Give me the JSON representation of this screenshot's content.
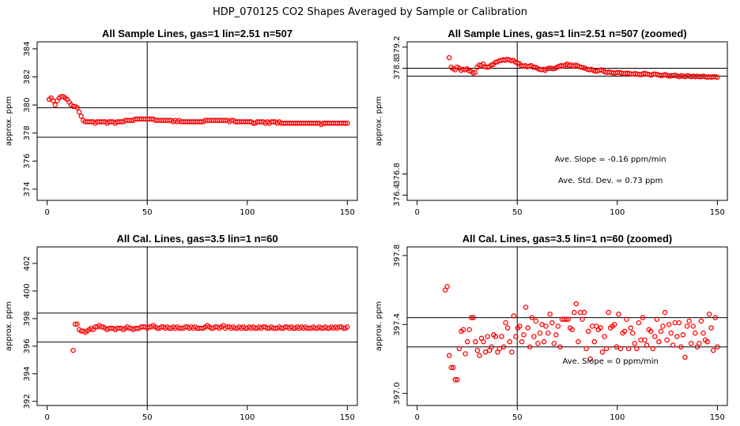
{
  "suptitle": "HDP_070125  CO2 Shapes Averaged by Sample or Calibration",
  "chart_data": [
    {
      "type": "scatter",
      "title": "All Sample Lines, gas=1 lin=2.51 n=507",
      "ylabel": "approx. ppm",
      "xlim": [
        -5,
        155
      ],
      "ylim": [
        373.2,
        384.5
      ],
      "xticks": [
        "0",
        "50",
        "100",
        "150"
      ],
      "yticks": [
        "374",
        "376",
        "378",
        "380",
        "382",
        "384"
      ],
      "vline": 50,
      "hlines": [
        377.7,
        379.8
      ],
      "annotations": [],
      "x_start": 1,
      "x_end": 150,
      "y": [
        380.4,
        380.5,
        380.3,
        380.0,
        380.3,
        380.5,
        380.6,
        380.6,
        380.5,
        380.4,
        380.2,
        380.0,
        379.9,
        379.9,
        379.8,
        379.5,
        379.2,
        378.9,
        378.8,
        378.8,
        378.8,
        378.8,
        378.8,
        378.7,
        378.8,
        378.8,
        378.8,
        378.8,
        378.8,
        378.7,
        378.8,
        378.8,
        378.8,
        378.7,
        378.8,
        378.8,
        378.8,
        378.8,
        378.9,
        378.9,
        378.9,
        378.9,
        378.9,
        379.0,
        379.0,
        379.0,
        379.0,
        379.0,
        379.0,
        379.0,
        379.0,
        379.0,
        379.0,
        378.9,
        378.9,
        378.9,
        378.9,
        378.9,
        378.9,
        378.9,
        378.9,
        378.9,
        378.8,
        378.9,
        378.8,
        378.9,
        378.8,
        378.8,
        378.8,
        378.8,
        378.8,
        378.8,
        378.8,
        378.8,
        378.8,
        378.8,
        378.8,
        378.8,
        378.9,
        378.9,
        378.9,
        378.9,
        378.9,
        378.9,
        378.9,
        378.9,
        378.9,
        378.9,
        378.9,
        378.9,
        378.8,
        378.9,
        378.9,
        378.8,
        378.8,
        378.8,
        378.8,
        378.8,
        378.8,
        378.8,
        378.8,
        378.8,
        378.7,
        378.7,
        378.8,
        378.8,
        378.8,
        378.8,
        378.7,
        378.8,
        378.7,
        378.8,
        378.8,
        378.8,
        378.7,
        378.8,
        378.7,
        378.7,
        378.7,
        378.7,
        378.7,
        378.7,
        378.7,
        378.7,
        378.7,
        378.7,
        378.7,
        378.7,
        378.7,
        378.7,
        378.7,
        378.7,
        378.7,
        378.7,
        378.7,
        378.7,
        378.6,
        378.7,
        378.7,
        378.7,
        378.7,
        378.7,
        378.7,
        378.7,
        378.7,
        378.7,
        378.7,
        378.7,
        378.7,
        378.7
      ]
    },
    {
      "type": "scatter",
      "title": "All Sample Lines, gas=1 lin=2.51 n=507 (zoomed)",
      "ylabel": "approx. ppm",
      "xlim": [
        -5,
        155
      ],
      "ylim": [
        376.3,
        379.3
      ],
      "xticks": [
        "0",
        "50",
        "100",
        "150"
      ],
      "yticks": [
        "376.4",
        "376.8",
        "378.8",
        "379.2"
      ],
      "ytick_values": [
        376.4,
        376.8,
        378.8,
        379.2
      ],
      "vline": 50,
      "hlines": [
        378.65,
        378.8
      ],
      "annotations": [
        "Ave. Slope =  -0.16  ppm/min",
        "Ave. Std. Dev. =  0.73  ppm"
      ],
      "x_start": 16,
      "x_end": 150,
      "y": [
        379.0,
        378.82,
        378.79,
        378.77,
        378.82,
        378.8,
        378.76,
        378.78,
        378.77,
        378.79,
        378.75,
        378.74,
        378.71,
        378.72,
        378.82,
        378.86,
        378.85,
        378.88,
        378.83,
        378.82,
        378.83,
        378.86,
        378.87,
        378.91,
        378.92,
        378.94,
        378.95,
        378.96,
        378.95,
        378.97,
        378.96,
        378.94,
        378.95,
        378.92,
        378.9,
        378.89,
        378.85,
        378.84,
        378.85,
        378.83,
        378.84,
        378.85,
        378.82,
        378.82,
        378.8,
        378.78,
        378.77,
        378.78,
        378.76,
        378.79,
        378.8,
        378.8,
        378.79,
        378.8,
        378.82,
        378.84,
        378.85,
        378.84,
        378.86,
        378.88,
        378.85,
        378.86,
        378.84,
        378.86,
        378.85,
        378.83,
        378.82,
        378.81,
        378.8,
        378.78,
        378.77,
        378.78,
        378.76,
        378.74,
        378.75,
        378.76,
        378.77,
        378.75,
        378.73,
        378.72,
        378.73,
        378.72,
        378.71,
        378.71,
        378.72,
        378.72,
        378.71,
        378.7,
        378.7,
        378.71,
        378.7,
        378.69,
        378.69,
        378.7,
        378.69,
        378.68,
        378.68,
        378.7,
        378.7,
        378.69,
        378.68,
        378.67,
        378.69,
        378.69,
        378.68,
        378.67,
        378.66,
        378.67,
        378.68,
        378.66,
        378.65,
        378.66,
        378.66,
        378.67,
        378.65,
        378.64,
        378.66,
        378.65,
        378.64,
        378.66,
        378.65,
        378.64,
        378.65,
        378.64,
        378.65,
        378.64,
        378.64,
        378.65,
        378.64,
        378.63,
        378.64,
        378.63,
        378.64,
        378.64,
        378.63
      ]
    },
    {
      "type": "scatter",
      "title": "All Cal. Lines, gas=3.5 lin=1 n=60",
      "ylabel": "approx. ppm",
      "xlim": [
        -5,
        155
      ],
      "ylim": [
        391.7,
        403.2
      ],
      "xticks": [
        "0",
        "50",
        "100",
        "150"
      ],
      "yticks": [
        "392",
        "394",
        "396",
        "398",
        "400",
        "402"
      ],
      "vline": 50,
      "hlines": [
        396.3,
        398.4
      ],
      "annotations": [],
      "x_start": 13,
      "x_end": 150,
      "y": [
        395.7,
        397.6,
        397.6,
        397.2,
        397.1,
        397.1,
        397.0,
        397.1,
        397.2,
        397.3,
        397.2,
        397.4,
        397.4,
        397.5,
        397.4,
        397.4,
        397.3,
        397.2,
        397.3,
        397.3,
        397.3,
        397.2,
        397.3,
        397.3,
        397.3,
        397.2,
        397.3,
        397.4,
        397.3,
        397.3,
        397.2,
        397.3,
        397.3,
        397.3,
        397.4,
        397.4,
        397.4,
        397.3,
        397.4,
        397.4,
        397.5,
        397.4,
        397.3,
        397.3,
        397.4,
        397.4,
        397.3,
        397.4,
        397.3,
        397.3,
        397.4,
        397.3,
        397.4,
        397.3,
        397.3,
        397.3,
        397.4,
        397.4,
        397.3,
        397.4,
        397.3,
        397.4,
        397.3,
        397.3,
        397.3,
        397.3,
        397.4,
        397.5,
        397.4,
        397.3,
        397.3,
        397.4,
        397.4,
        397.3,
        397.4,
        397.5,
        397.3,
        397.4,
        397.4,
        397.3,
        397.4,
        397.3,
        397.3,
        397.4,
        397.3,
        397.4,
        397.3,
        397.3,
        397.4,
        397.3,
        397.4,
        397.3,
        397.3,
        397.4,
        397.3,
        397.4,
        397.4,
        397.3,
        397.3,
        397.4,
        397.3,
        397.3,
        397.3,
        397.4,
        397.3,
        397.3,
        397.4,
        397.4,
        397.3,
        397.4,
        397.3,
        397.3,
        397.4,
        397.3,
        397.4,
        397.3,
        397.4,
        397.3,
        397.3,
        397.3,
        397.4,
        397.3,
        397.3,
        397.4,
        397.3,
        397.3,
        397.4,
        397.3,
        397.3,
        397.4,
        397.3,
        397.4,
        397.3,
        397.4,
        397.4,
        397.3,
        397.3,
        397.4
      ]
    },
    {
      "type": "scatter",
      "title": "All Cal. Lines, gas=3.5 lin=1 n=60 (zoomed)",
      "ylabel": "approx. ppm",
      "xlim": [
        -5,
        155
      ],
      "ylim": [
        396.93,
        397.85
      ],
      "xticks": [
        "0",
        "50",
        "100",
        "150"
      ],
      "yticks": [
        "397.0",
        "397.4",
        "397.8"
      ],
      "ytick_values": [
        397.0,
        397.4,
        397.8
      ],
      "vline": 50,
      "hlines": [
        397.27,
        397.44
      ],
      "annotations": [
        "Ave. Slope =  0  ppm/min"
      ],
      "x_start": 14,
      "x_end": 150,
      "y": [
        397.6,
        397.62,
        397.22,
        397.15,
        397.15,
        397.08,
        397.08,
        397.26,
        397.36,
        397.37,
        397.23,
        397.3,
        397.37,
        397.44,
        397.44,
        397.3,
        397.25,
        397.22,
        397.32,
        397.3,
        397.24,
        397.33,
        397.25,
        397.27,
        397.34,
        397.33,
        397.24,
        397.26,
        397.33,
        397.27,
        397.41,
        397.38,
        397.3,
        397.24,
        397.45,
        397.33,
        397.38,
        397.39,
        397.3,
        397.34,
        397.5,
        397.38,
        397.27,
        397.44,
        397.33,
        397.42,
        397.29,
        397.35,
        397.4,
        397.3,
        397.39,
        397.35,
        397.46,
        397.41,
        397.29,
        397.34,
        397.39,
        397.27,
        397.43,
        397.43,
        397.43,
        397.43,
        397.38,
        397.37,
        397.47,
        397.52,
        397.3,
        397.47,
        397.43,
        397.47,
        397.26,
        397.36,
        397.2,
        397.39,
        397.3,
        397.39,
        397.37,
        397.38,
        397.24,
        397.33,
        397.26,
        397.47,
        397.38,
        397.39,
        397.4,
        397.27,
        397.46,
        397.26,
        397.35,
        397.36,
        397.43,
        397.26,
        397.38,
        397.35,
        397.29,
        397.26,
        397.41,
        397.31,
        397.44,
        397.31,
        397.28,
        397.37,
        397.36,
        397.26,
        397.33,
        397.43,
        397.3,
        397.36,
        397.39,
        397.47,
        397.31,
        397.4,
        397.35,
        397.28,
        397.41,
        397.33,
        397.41,
        397.27,
        397.34,
        397.21,
        397.39,
        397.42,
        397.29,
        397.39,
        397.35,
        397.27,
        397.29,
        397.42,
        397.35,
        397.31,
        397.3,
        397.46,
        397.38,
        397.25,
        397.44,
        397.27
      ]
    }
  ]
}
